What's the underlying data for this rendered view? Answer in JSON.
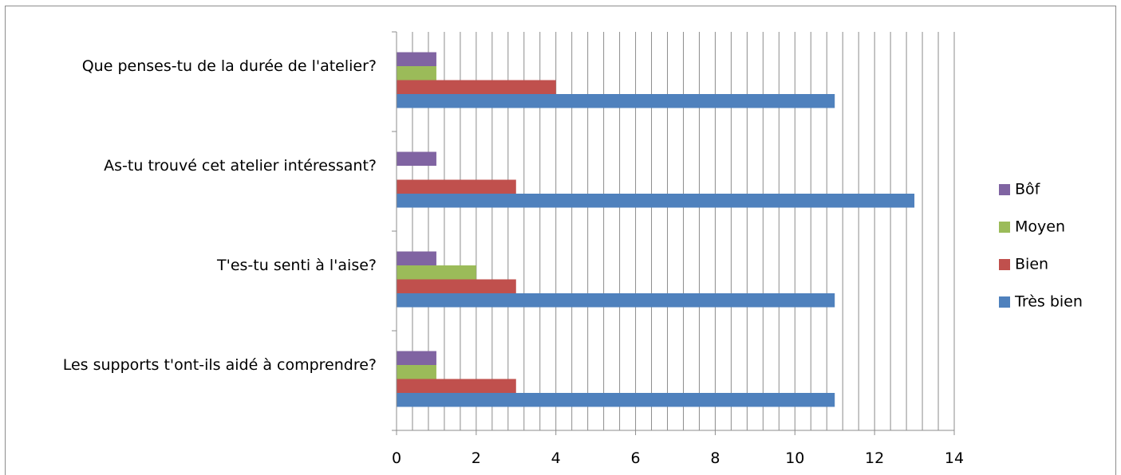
{
  "chart_data": {
    "type": "bar",
    "orientation": "horizontal",
    "categories": [
      "Que penses-tu de la durée de l'atelier?",
      "As-tu trouvé cet atelier intéressant?",
      "T'es-tu senti à l'aise?",
      "Les supports t'ont-ils aidé à comprendre?"
    ],
    "series": [
      {
        "name": "Bôf",
        "color": "#8064A2",
        "values": [
          1,
          1,
          1,
          1
        ]
      },
      {
        "name": "Moyen",
        "color": "#9BBB59",
        "values": [
          1,
          0,
          2,
          1
        ]
      },
      {
        "name": "Bien",
        "color": "#C0504D",
        "values": [
          4,
          3,
          3,
          3
        ]
      },
      {
        "name": "Très bien",
        "color": "#4F81BD",
        "values": [
          11,
          13,
          11,
          11
        ]
      }
    ],
    "xlim": [
      0,
      14
    ],
    "xticks": [
      "0",
      "2",
      "4",
      "6",
      "8",
      "10",
      "12",
      "14"
    ],
    "minor_grid_step": 0.4,
    "title": "",
    "xlabel": "",
    "ylabel": "",
    "grid": true,
    "legend": "right"
  }
}
